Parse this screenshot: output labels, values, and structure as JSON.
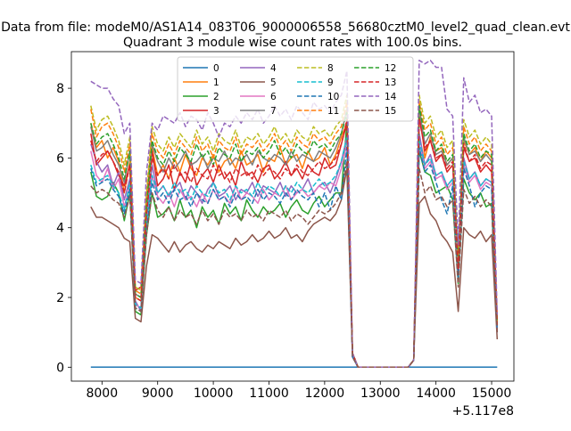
{
  "suptitle": "Data from file: modeM0/AS1A14_083T06_9000006558_56680cztM0_level2_quad_clean.evt",
  "chart_data": {
    "type": "line",
    "title": "Quadrant 3 module wise count rates with 100.0s bins.",
    "xlabel": "",
    "ylabel": "",
    "x_offset_label": "+5.117e8",
    "xlim": [
      7450,
      15400
    ],
    "ylim": [
      -0.4,
      9.05
    ],
    "xticks": [
      8000,
      9000,
      10000,
      11000,
      12000,
      13000,
      14000,
      15000
    ],
    "yticks": [
      0,
      2,
      4,
      6,
      8
    ],
    "grid": false,
    "legend_position": "top-center",
    "legend_columns": 4,
    "x": [
      7800,
      7900,
      8000,
      8100,
      8200,
      8300,
      8400,
      8500,
      8600,
      8700,
      8800,
      8900,
      9000,
      9100,
      9200,
      9300,
      9400,
      9500,
      9600,
      9700,
      9800,
      9900,
      10000,
      10100,
      10200,
      10300,
      10400,
      10500,
      10600,
      10700,
      10800,
      10900,
      11000,
      11100,
      11200,
      11300,
      11400,
      11500,
      11600,
      11700,
      11800,
      11900,
      12000,
      12100,
      12200,
      12300,
      12400,
      12500,
      12600,
      13500,
      13600,
      13700,
      13800,
      13900,
      14000,
      14100,
      14200,
      14300,
      14400,
      14500,
      14600,
      14700,
      14800,
      14900,
      15000,
      15100
    ],
    "series": [
      {
        "name": "0",
        "color": "#1f77b4",
        "dash": "solid",
        "values": [
          0,
          0,
          0,
          0,
          0,
          0,
          0,
          0,
          0,
          0,
          0,
          0,
          0,
          0,
          0,
          0,
          0,
          0,
          0,
          0,
          0,
          0,
          0,
          0,
          0,
          0,
          0,
          0,
          0,
          0,
          0,
          0,
          0,
          0,
          0,
          0,
          0,
          0,
          0,
          0,
          0,
          0,
          0,
          0,
          0,
          0,
          0,
          0,
          0,
          0,
          0,
          0,
          0,
          0,
          0,
          0,
          0,
          0,
          0,
          0,
          0,
          0,
          0,
          0,
          0,
          0
        ]
      },
      {
        "name": "1",
        "color": "#ff7f0e",
        "dash": "solid",
        "values": [
          7.0,
          6.3,
          6.5,
          6.0,
          6.3,
          5.9,
          5.0,
          5.9,
          2.0,
          1.9,
          4.5,
          6.3,
          5.5,
          5.8,
          5.4,
          6.0,
          5.6,
          6.1,
          5.7,
          5.5,
          6.0,
          5.8,
          6.1,
          5.6,
          5.9,
          6.0,
          5.7,
          6.2,
          5.8,
          5.9,
          6.1,
          5.6,
          6.0,
          5.9,
          6.3,
          5.8,
          6.0,
          6.1,
          5.7,
          6.2,
          5.9,
          6.0,
          6.3,
          5.8,
          6.1,
          6.6,
          7.0,
          0.4,
          0.0,
          0.0,
          0.2,
          7.6,
          6.0,
          6.6,
          6.2,
          6.3,
          5.8,
          6.0,
          3.0,
          6.5,
          6.1,
          6.3,
          5.9,
          6.2,
          6.0,
          1.3
        ]
      },
      {
        "name": "2",
        "color": "#2ca02c",
        "dash": "solid",
        "values": [
          5.6,
          4.9,
          4.8,
          4.9,
          5.3,
          5.0,
          4.2,
          5.0,
          1.6,
          1.5,
          3.8,
          5.0,
          4.3,
          4.4,
          4.6,
          4.2,
          4.8,
          4.3,
          4.5,
          4.0,
          4.6,
          4.3,
          4.5,
          4.1,
          4.7,
          4.4,
          4.6,
          4.2,
          4.8,
          4.5,
          4.3,
          4.6,
          4.4,
          4.5,
          4.7,
          4.3,
          4.6,
          4.8,
          4.5,
          4.4,
          4.7,
          4.9,
          4.6,
          4.8,
          5.0,
          5.0,
          7.0,
          0.3,
          0.0,
          0.0,
          0.2,
          6.2,
          5.6,
          5.5,
          5.0,
          5.1,
          5.2,
          4.8,
          2.4,
          5.4,
          5.0,
          4.8,
          5.0,
          4.6,
          4.7,
          1.2
        ]
      },
      {
        "name": "3",
        "color": "#d62728",
        "dash": "solid",
        "values": [
          6.7,
          5.8,
          6.0,
          6.2,
          5.9,
          5.5,
          5.2,
          5.8,
          2.2,
          2.3,
          4.9,
          6.2,
          5.2,
          5.4,
          5.8,
          5.1,
          5.6,
          5.3,
          5.9,
          5.2,
          5.5,
          5.7,
          5.3,
          5.8,
          5.4,
          5.6,
          5.2,
          5.9,
          5.5,
          5.6,
          5.3,
          5.7,
          5.8,
          5.4,
          5.6,
          5.9,
          5.5,
          5.7,
          5.4,
          5.8,
          5.6,
          5.5,
          6.0,
          5.7,
          5.8,
          6.4,
          7.0,
          0.4,
          0.0,
          0.0,
          0.2,
          7.2,
          6.2,
          6.5,
          5.9,
          6.1,
          5.6,
          5.8,
          2.8,
          6.3,
          5.9,
          6.0,
          5.6,
          5.8,
          5.6,
          1.1
        ]
      },
      {
        "name": "4",
        "color": "#9467bd",
        "dash": "solid",
        "values": [
          6.4,
          5.9,
          5.6,
          5.8,
          5.2,
          5.6,
          4.8,
          5.4,
          1.9,
          1.6,
          4.2,
          5.8,
          5.0,
          5.2,
          4.9,
          5.1,
          5.3,
          4.8,
          5.2,
          5.0,
          4.7,
          5.1,
          5.3,
          4.9,
          5.0,
          5.2,
          4.8,
          5.1,
          5.0,
          5.3,
          4.9,
          5.2,
          5.1,
          5.0,
          5.3,
          4.9,
          5.2,
          5.0,
          5.1,
          5.4,
          5.0,
          5.2,
          5.3,
          5.0,
          5.4,
          5.9,
          6.6,
          0.3,
          0.0,
          0.0,
          0.2,
          6.7,
          5.8,
          6.1,
          5.5,
          5.6,
          5.2,
          5.4,
          2.6,
          6.0,
          5.4,
          5.6,
          5.2,
          5.4,
          5.3,
          1.0
        ]
      },
      {
        "name": "5",
        "color": "#8c564b",
        "dash": "solid",
        "values": [
          4.6,
          4.3,
          4.3,
          4.2,
          4.1,
          4.0,
          3.7,
          3.6,
          1.4,
          1.3,
          2.9,
          3.8,
          3.7,
          3.5,
          3.3,
          3.6,
          3.3,
          3.5,
          3.6,
          3.4,
          3.3,
          3.5,
          3.4,
          3.6,
          3.5,
          3.4,
          3.7,
          3.5,
          3.6,
          3.8,
          3.6,
          3.7,
          3.9,
          3.7,
          3.8,
          4.0,
          3.7,
          3.8,
          3.6,
          3.9,
          4.1,
          4.2,
          4.3,
          4.2,
          4.4,
          4.8,
          5.7,
          0.3,
          0.0,
          0.0,
          0.2,
          4.7,
          4.9,
          4.4,
          4.2,
          3.8,
          3.6,
          3.3,
          1.6,
          4.0,
          3.8,
          3.7,
          3.9,
          3.6,
          3.8,
          0.8
        ]
      },
      {
        "name": "6",
        "color": "#e377c2",
        "dash": "solid",
        "values": [
          6.2,
          5.5,
          5.3,
          5.7,
          5.1,
          5.4,
          4.6,
          5.2,
          1.8,
          1.7,
          4.0,
          5.5,
          4.9,
          4.7,
          5.0,
          4.6,
          5.1,
          4.8,
          4.9,
          4.6,
          5.0,
          4.7,
          5.1,
          4.8,
          4.9,
          4.7,
          5.2,
          4.8,
          5.0,
          4.9,
          4.7,
          5.1,
          4.8,
          5.0,
          4.9,
          5.2,
          4.8,
          5.0,
          5.1,
          4.9,
          5.0,
          5.2,
          5.1,
          5.3,
          5.2,
          5.7,
          6.4,
          0.3,
          0.0,
          0.0,
          0.2,
          6.4,
          5.7,
          5.9,
          5.4,
          5.5,
          5.1,
          5.3,
          2.5,
          5.8,
          5.3,
          5.5,
          5.1,
          5.3,
          5.2,
          1.0
        ]
      },
      {
        "name": "7",
        "color": "#7f7f7f",
        "dash": "solid",
        "values": [
          6.9,
          6.2,
          6.3,
          6.5,
          6.1,
          5.8,
          5.3,
          6.2,
          2.1,
          2.0,
          4.7,
          6.4,
          5.9,
          5.6,
          6.0,
          5.7,
          5.9,
          6.2,
          5.8,
          5.9,
          6.1,
          5.7,
          6.0,
          5.9,
          6.2,
          5.8,
          6.0,
          5.9,
          6.1,
          5.8,
          6.2,
          6.0,
          5.9,
          6.1,
          6.0,
          5.8,
          6.2,
          5.9,
          6.1,
          6.0,
          5.9,
          6.2,
          6.1,
          6.0,
          6.3,
          6.7,
          7.4,
          0.4,
          0.0,
          0.0,
          0.2,
          7.4,
          6.4,
          6.7,
          6.1,
          6.2,
          5.8,
          6.0,
          2.9,
          6.6,
          6.1,
          6.2,
          5.9,
          6.1,
          5.9,
          1.2
        ]
      },
      {
        "name": "8",
        "color": "#bcbd22",
        "dash": "dashed",
        "values": [
          7.5,
          6.8,
          7.1,
          7.2,
          6.9,
          6.5,
          5.8,
          6.6,
          2.3,
          2.2,
          5.0,
          6.9,
          6.4,
          6.2,
          6.6,
          6.3,
          6.7,
          6.5,
          6.3,
          6.8,
          6.4,
          6.6,
          6.2,
          6.7,
          6.5,
          6.4,
          6.8,
          6.3,
          6.6,
          6.5,
          6.7,
          6.4,
          6.6,
          6.9,
          6.5,
          6.7,
          6.4,
          6.8,
          6.6,
          6.5,
          6.9,
          6.7,
          6.8,
          6.6,
          6.9,
          7.1,
          7.8,
          0.4,
          0.0,
          0.0,
          0.2,
          7.8,
          7.0,
          7.2,
          6.6,
          6.8,
          6.3,
          6.5,
          3.1,
          7.1,
          6.6,
          6.8,
          6.4,
          6.6,
          6.4,
          1.3
        ]
      },
      {
        "name": "9",
        "color": "#17becf",
        "dash": "dashed",
        "values": [
          5.8,
          5.3,
          5.4,
          5.5,
          5.2,
          5.0,
          4.5,
          5.3,
          1.8,
          1.7,
          4.1,
          5.5,
          5.0,
          5.2,
          4.9,
          5.3,
          5.0,
          5.1,
          4.8,
          5.2,
          5.0,
          4.9,
          5.3,
          5.0,
          5.1,
          4.8,
          5.2,
          5.0,
          5.1,
          4.9,
          5.3,
          5.0,
          5.2,
          5.1,
          4.9,
          5.2,
          5.0,
          5.3,
          5.1,
          5.0,
          5.2,
          5.4,
          5.2,
          5.3,
          5.5,
          5.9,
          6.6,
          0.3,
          0.0,
          0.0,
          0.2,
          6.5,
          5.8,
          6.0,
          5.5,
          5.6,
          5.2,
          5.4,
          2.6,
          5.9,
          5.4,
          5.6,
          5.2,
          5.4,
          5.3,
          1.1
        ]
      },
      {
        "name": "10",
        "color": "#1f77b4",
        "dash": "dashed",
        "values": [
          5.7,
          5.2,
          5.3,
          5.4,
          5.1,
          4.9,
          4.4,
          5.1,
          1.7,
          1.6,
          3.9,
          5.3,
          4.8,
          5.0,
          4.7,
          5.1,
          4.8,
          4.9,
          4.6,
          5.0,
          4.8,
          4.7,
          5.1,
          4.8,
          4.9,
          4.6,
          5.0,
          4.8,
          4.9,
          4.7,
          5.1,
          4.8,
          5.0,
          4.9,
          4.7,
          5.0,
          4.8,
          5.1,
          4.9,
          4.8,
          5.0,
          4.6,
          5.0,
          4.5,
          5.2,
          4.8,
          6.3,
          0.3,
          0.0,
          0.0,
          0.2,
          6.3,
          5.6,
          5.8,
          5.3,
          4.8,
          4.4,
          5.2,
          2.5,
          5.7,
          5.2,
          4.6,
          5.0,
          5.2,
          5.1,
          1.0
        ]
      },
      {
        "name": "11",
        "color": "#ff7f0e",
        "dash": "dashed",
        "values": [
          7.4,
          6.6,
          6.9,
          7.0,
          6.7,
          6.3,
          5.6,
          6.4,
          2.2,
          2.1,
          4.8,
          6.7,
          6.2,
          6.0,
          6.4,
          6.1,
          6.5,
          6.3,
          6.1,
          6.6,
          6.2,
          6.4,
          6.0,
          6.5,
          6.3,
          6.2,
          6.6,
          6.1,
          6.4,
          6.3,
          6.5,
          6.2,
          6.4,
          6.7,
          6.3,
          6.5,
          6.2,
          6.6,
          6.4,
          6.3,
          6.7,
          6.5,
          6.6,
          6.4,
          6.7,
          6.9,
          7.6,
          0.4,
          0.0,
          0.0,
          0.2,
          7.6,
          6.8,
          7.0,
          6.4,
          6.6,
          6.1,
          6.3,
          3.0,
          6.9,
          6.4,
          6.6,
          6.2,
          6.4,
          6.2,
          1.3
        ]
      },
      {
        "name": "12",
        "color": "#2ca02c",
        "dash": "dashed",
        "values": [
          7.0,
          6.4,
          6.6,
          6.7,
          6.4,
          6.0,
          5.4,
          6.2,
          2.1,
          2.0,
          4.6,
          6.5,
          6.0,
          5.8,
          6.2,
          5.9,
          6.3,
          6.1,
          5.9,
          6.4,
          6.0,
          6.2,
          5.8,
          6.3,
          6.1,
          6.0,
          6.4,
          5.9,
          6.2,
          6.1,
          6.3,
          6.0,
          6.2,
          6.5,
          6.1,
          6.3,
          6.0,
          6.4,
          6.2,
          6.1,
          6.5,
          6.3,
          6.4,
          6.2,
          6.5,
          6.7,
          7.3,
          0.4,
          0.0,
          0.0,
          0.2,
          7.5,
          6.6,
          6.8,
          6.2,
          6.4,
          5.9,
          6.1,
          2.9,
          6.7,
          6.2,
          6.4,
          6.0,
          6.2,
          6.1,
          1.2
        ]
      },
      {
        "name": "13",
        "color": "#d62728",
        "dash": "dashed",
        "values": [
          6.5,
          5.9,
          6.1,
          6.2,
          5.9,
          5.6,
          5.0,
          5.8,
          2.0,
          1.9,
          4.4,
          6.0,
          5.5,
          5.7,
          5.4,
          5.8,
          5.5,
          5.6,
          5.3,
          5.7,
          5.5,
          5.4,
          5.8,
          5.5,
          5.6,
          5.3,
          5.7,
          5.5,
          5.6,
          5.4,
          5.8,
          5.5,
          5.7,
          5.6,
          5.4,
          5.7,
          5.5,
          5.8,
          5.6,
          5.5,
          5.7,
          5.9,
          5.7,
          5.8,
          6.0,
          6.4,
          7.1,
          0.4,
          0.0,
          0.0,
          0.2,
          7.1,
          6.3,
          6.5,
          6.0,
          6.1,
          5.7,
          5.9,
          2.8,
          6.4,
          5.9,
          6.1,
          5.7,
          5.9,
          5.8,
          1.2
        ]
      },
      {
        "name": "14",
        "color": "#9467bd",
        "dash": "dashed",
        "values": [
          8.2,
          8.1,
          8.0,
          8.0,
          7.7,
          7.5,
          6.7,
          7.0,
          2.5,
          2.4,
          5.6,
          7.0,
          6.8,
          7.2,
          7.1,
          7.0,
          7.3,
          6.9,
          7.2,
          7.1,
          6.8,
          7.3,
          7.0,
          6.6,
          7.0,
          6.9,
          7.2,
          7.0,
          7.3,
          7.1,
          7.4,
          7.0,
          7.2,
          7.5,
          7.2,
          7.4,
          7.1,
          7.5,
          7.3,
          7.1,
          7.6,
          7.4,
          7.5,
          7.3,
          7.6,
          7.8,
          8.5,
          0.4,
          0.0,
          0.0,
          0.2,
          8.8,
          8.7,
          8.8,
          8.6,
          8.6,
          7.4,
          7.2,
          3.5,
          8.3,
          7.6,
          7.8,
          7.3,
          7.4,
          7.2,
          1.5
        ]
      },
      {
        "name": "15",
        "color": "#8c564b",
        "dash": "dashed",
        "values": [
          5.2,
          5.0,
          5.1,
          5.0,
          4.8,
          4.7,
          4.3,
          4.9,
          1.7,
          1.6,
          3.8,
          5.0,
          4.5,
          4.3,
          4.6,
          4.2,
          4.5,
          4.3,
          4.4,
          4.1,
          4.5,
          4.2,
          4.4,
          4.1,
          4.5,
          4.3,
          4.4,
          4.2,
          4.5,
          4.3,
          4.4,
          4.2,
          4.5,
          4.4,
          4.3,
          4.5,
          4.2,
          4.4,
          4.3,
          4.1,
          4.3,
          4.5,
          4.4,
          4.5,
          4.7,
          5.0,
          5.9,
          0.3,
          0.0,
          0.0,
          0.2,
          5.7,
          5.0,
          5.2,
          4.8,
          4.9,
          4.6,
          4.8,
          2.3,
          5.1,
          4.7,
          4.9,
          4.6,
          4.8,
          4.6,
          1.0
        ]
      }
    ]
  }
}
